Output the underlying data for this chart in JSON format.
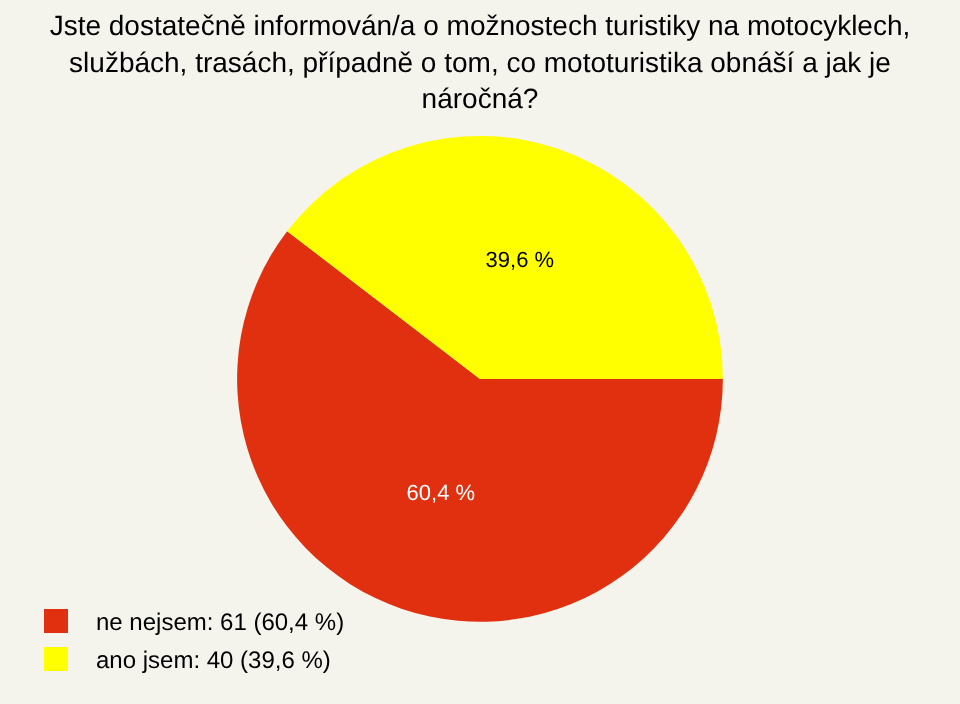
{
  "chart_data": {
    "type": "pie",
    "title": "Jste dostatečně informován/a o možnostech turistiky na motocyklech,\nslužbách, trasách, případně o tom, co mototuristika obnáší a jak je\nnáročná?",
    "categories": [
      "ne nejsem: 61 (60,4 %)",
      "ano jsem: 40 (39,6 %)"
    ],
    "values": [
      60.4,
      39.6
    ],
    "value_labels": [
      "60,4 %",
      "39,6 %"
    ],
    "colors": [
      "#e0300f",
      "#ffff00"
    ],
    "legend": "bottom left"
  }
}
